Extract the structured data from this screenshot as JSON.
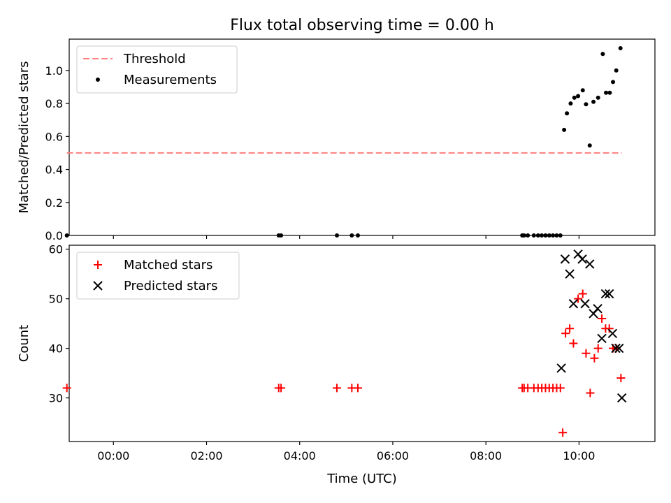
{
  "figure": {
    "title": "Flux total observing time = 0.00 h",
    "xlabel": "Time (UTC)"
  },
  "chart_data": [
    {
      "type": "scatter",
      "ylabel": "Matched/Predicted stars",
      "ylim": [
        0,
        1.19
      ],
      "yticks": [
        0.0,
        0.2,
        0.4,
        0.6,
        0.8,
        1.0
      ],
      "ytick_labels": [
        "0.0",
        "0.2",
        "0.4",
        "0.6",
        "0.8",
        "1.0"
      ],
      "xlim": [
        -0.95,
        11.63
      ],
      "legend": {
        "placement": "top-left"
      },
      "series": [
        {
          "name": "Threshold",
          "kind": "dashed-line",
          "color": "#ff7f7f",
          "x": [
            -1.0,
            10.92
          ],
          "y": [
            0.5,
            0.5
          ]
        },
        {
          "name": "Measurements",
          "kind": "dot",
          "color": "#000000",
          "x": [
            -1.0,
            3.55,
            3.6,
            4.8,
            5.12,
            5.25,
            8.78,
            8.82,
            8.9,
            9.03,
            9.12,
            9.2,
            9.28,
            9.36,
            9.44,
            9.52,
            9.6,
            9.68,
            9.74,
            9.82,
            9.9,
            9.98,
            10.08,
            10.15,
            10.23,
            10.31,
            10.41,
            10.51,
            10.58,
            10.66,
            10.73,
            10.8,
            10.89
          ],
          "y": [
            0.0,
            0.0,
            0.0,
            0.0,
            0.0,
            0.0,
            0.0,
            0.0,
            0.0,
            0.0,
            0.0,
            0.0,
            0.0,
            0.0,
            0.0,
            0.0,
            0.0,
            0.64,
            0.74,
            0.8,
            0.835,
            0.845,
            0.88,
            0.795,
            0.545,
            0.81,
            0.835,
            1.1,
            0.865,
            0.865,
            0.93,
            1.0,
            1.135
          ]
        }
      ]
    },
    {
      "type": "scatter",
      "ylabel": "Count",
      "ylim": [
        21.2,
        60.8
      ],
      "yticks": [
        30,
        40,
        50,
        60
      ],
      "ytick_labels": [
        "30",
        "40",
        "50",
        "60"
      ],
      "xlim": [
        -0.95,
        11.63
      ],
      "xticks": [
        0,
        2,
        4,
        6,
        8,
        10
      ],
      "xtick_labels": [
        "00:00",
        "02:00",
        "04:00",
        "06:00",
        "08:00",
        "10:00"
      ],
      "legend": {
        "placement": "top-left"
      },
      "series": [
        {
          "name": "Matched stars",
          "kind": "plus",
          "color": "#ff0000",
          "x": [
            -1.0,
            3.55,
            3.6,
            4.8,
            5.12,
            5.25,
            8.78,
            8.82,
            8.9,
            9.03,
            9.12,
            9.2,
            9.28,
            9.36,
            9.44,
            9.52,
            9.6,
            9.65,
            9.71,
            9.8,
            9.88,
            9.98,
            10.08,
            10.15,
            10.24,
            10.33,
            10.41,
            10.49,
            10.57,
            10.65,
            10.73,
            10.8,
            10.9
          ],
          "y": [
            32,
            32,
            32,
            32,
            32,
            32,
            32,
            32,
            32,
            32,
            32,
            32,
            32,
            32,
            32,
            32,
            32,
            23,
            43,
            44,
            41,
            50,
            51,
            39,
            31,
            38,
            40,
            46,
            44,
            44,
            40,
            40,
            34
          ]
        },
        {
          "name": "Predicted stars",
          "kind": "x",
          "color": "#000000",
          "x": [
            9.62,
            9.7,
            9.8,
            9.88,
            9.98,
            10.07,
            10.13,
            10.23,
            10.31,
            10.4,
            10.49,
            10.57,
            10.65,
            10.72,
            10.79,
            10.86,
            10.92
          ],
          "y": [
            36,
            58,
            55,
            49,
            59,
            58,
            49,
            57,
            47,
            48,
            42,
            51,
            51,
            43,
            40,
            40,
            30
          ]
        }
      ]
    }
  ]
}
